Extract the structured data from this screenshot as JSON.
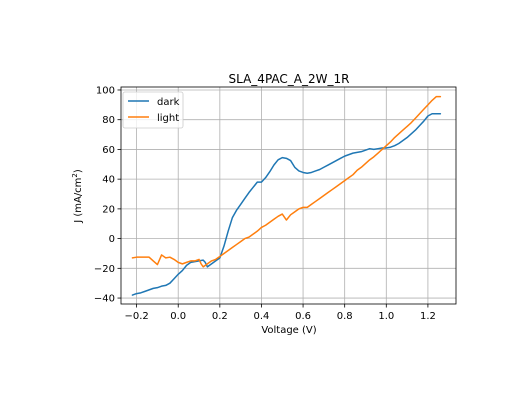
{
  "chart_data": {
    "type": "line",
    "title": "SLA_4PAC_A_2W_1R",
    "xlabel": "Voltage (V)",
    "ylabel_main": "J (mA/cm",
    "ylabel_sup": "2",
    "ylabel_close": ")",
    "xlim": [
      -0.275,
      1.335
    ],
    "ylim": [
      -44,
      102
    ],
    "grid": true,
    "legend_position": "top-left",
    "xticks": [
      {
        "value": -0.2,
        "label": "−0.2"
      },
      {
        "value": 0.0,
        "label": "0.0"
      },
      {
        "value": 0.2,
        "label": "0.2"
      },
      {
        "value": 0.4,
        "label": "0.4"
      },
      {
        "value": 0.6,
        "label": "0.6"
      },
      {
        "value": 0.8,
        "label": "0.8"
      },
      {
        "value": 1.0,
        "label": "1.0"
      },
      {
        "value": 1.2,
        "label": "1.2"
      }
    ],
    "yticks": [
      {
        "value": -40,
        "label": "−40"
      },
      {
        "value": -20,
        "label": "−20"
      },
      {
        "value": 0,
        "label": "0"
      },
      {
        "value": 20,
        "label": "20"
      },
      {
        "value": 40,
        "label": "40"
      },
      {
        "value": 60,
        "label": "60"
      },
      {
        "value": 80,
        "label": "80"
      },
      {
        "value": 100,
        "label": "100"
      }
    ],
    "series": [
      {
        "name": "dark",
        "color": "#1f77b4",
        "x": [
          -0.22,
          -0.2,
          -0.18,
          -0.16,
          -0.14,
          -0.12,
          -0.1,
          -0.08,
          -0.06,
          -0.04,
          -0.02,
          0.0,
          0.02,
          0.04,
          0.06,
          0.08,
          0.1,
          0.12,
          0.13,
          0.14,
          0.16,
          0.18,
          0.2,
          0.22,
          0.24,
          0.26,
          0.28,
          0.3,
          0.32,
          0.34,
          0.36,
          0.38,
          0.4,
          0.42,
          0.44,
          0.46,
          0.48,
          0.5,
          0.52,
          0.54,
          0.56,
          0.58,
          0.6,
          0.62,
          0.64,
          0.66,
          0.68,
          0.7,
          0.72,
          0.74,
          0.76,
          0.78,
          0.8,
          0.82,
          0.84,
          0.86,
          0.88,
          0.9,
          0.92,
          0.94,
          0.96,
          0.98,
          1.0,
          1.02,
          1.04,
          1.06,
          1.08,
          1.1,
          1.12,
          1.14,
          1.16,
          1.18,
          1.2,
          1.22,
          1.24,
          1.26
        ],
        "y": [
          -38,
          -37,
          -36.5,
          -35.5,
          -34.5,
          -33.5,
          -33,
          -32,
          -31.5,
          -30,
          -27,
          -24,
          -21.5,
          -18,
          -16,
          -15.5,
          -15,
          -14.5,
          -16,
          -19,
          -17,
          -15,
          -13,
          -5,
          5,
          14,
          19,
          23,
          27,
          31,
          34.5,
          38,
          38,
          41,
          45,
          49.5,
          53,
          54.5,
          54,
          52.5,
          48,
          45.5,
          44.5,
          44,
          44.5,
          45.5,
          46.5,
          48,
          49.5,
          51,
          52.5,
          54,
          55.5,
          56.5,
          57.5,
          58,
          58.5,
          59.5,
          60.5,
          60,
          60.5,
          61,
          61,
          61.5,
          62.5,
          64,
          66,
          68,
          70.5,
          73,
          76,
          79,
          82.5,
          84,
          84,
          84
        ]
      },
      {
        "name": "light",
        "color": "#ff7f0e",
        "x": [
          -0.22,
          -0.2,
          -0.18,
          -0.16,
          -0.14,
          -0.12,
          -0.1,
          -0.08,
          -0.06,
          -0.04,
          -0.02,
          0.0,
          0.02,
          0.04,
          0.06,
          0.08,
          0.1,
          0.11,
          0.12,
          0.14,
          0.16,
          0.18,
          0.2,
          0.22,
          0.24,
          0.26,
          0.28,
          0.3,
          0.32,
          0.34,
          0.36,
          0.38,
          0.4,
          0.42,
          0.44,
          0.46,
          0.48,
          0.5,
          0.52,
          0.54,
          0.56,
          0.58,
          0.6,
          0.62,
          0.64,
          0.66,
          0.68,
          0.7,
          0.72,
          0.74,
          0.76,
          0.78,
          0.8,
          0.82,
          0.84,
          0.86,
          0.88,
          0.9,
          0.92,
          0.94,
          0.96,
          0.98,
          1.0,
          1.02,
          1.04,
          1.06,
          1.08,
          1.1,
          1.12,
          1.14,
          1.16,
          1.18,
          1.2,
          1.22,
          1.24,
          1.26
        ],
        "y": [
          -13,
          -12.5,
          -12.5,
          -12.5,
          -12.5,
          -15,
          -17.5,
          -11,
          -13,
          -12.5,
          -14,
          -16,
          -17,
          -16,
          -15,
          -15,
          -14,
          -17,
          -19,
          -17,
          -15,
          -14,
          -12,
          -10,
          -8,
          -6,
          -4,
          -2,
          0,
          1,
          3,
          5,
          7.5,
          9,
          11,
          13,
          15,
          16.5,
          12.5,
          16,
          18,
          20,
          21,
          21,
          23,
          25,
          27,
          29,
          31,
          33,
          35,
          37,
          39,
          41,
          43,
          46,
          48,
          50.5,
          53,
          55,
          57.5,
          60,
          62.5,
          65,
          68,
          70.5,
          73,
          75.5,
          78,
          81,
          84,
          87,
          90,
          93,
          95.5,
          95.5
        ]
      }
    ]
  }
}
